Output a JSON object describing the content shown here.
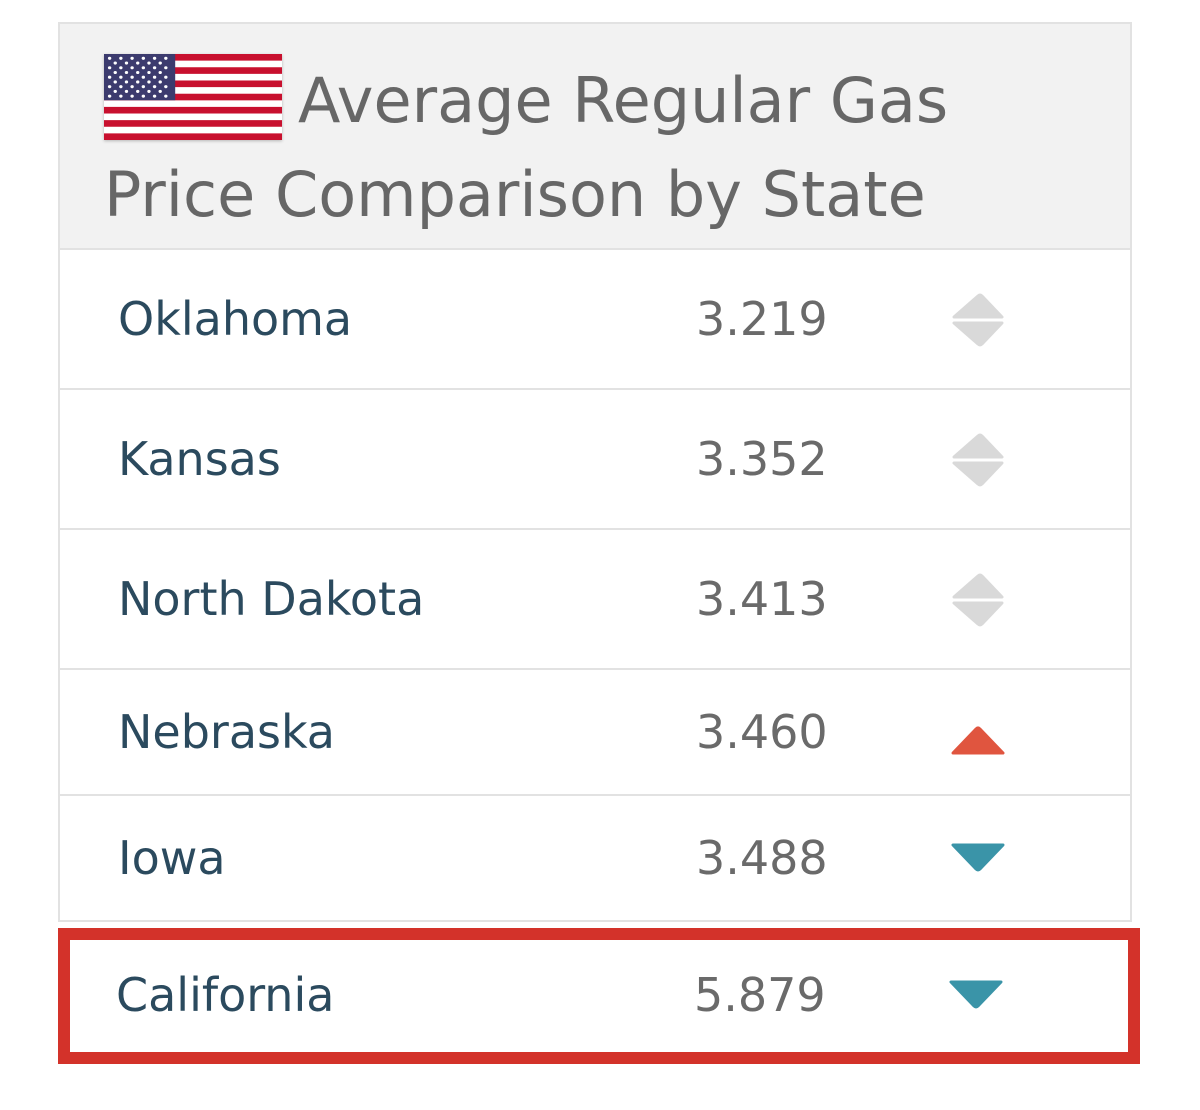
{
  "widget": {
    "title": "Average Regular Gas Price Comparison by State",
    "flag_icon": "us-flag-icon"
  },
  "rows": [
    {
      "state": "Oklahoma",
      "price": "3.219",
      "trend": "neutral"
    },
    {
      "state": "Kansas",
      "price": "3.352",
      "trend": "neutral"
    },
    {
      "state": "North Dakota",
      "price": "3.413",
      "trend": "neutral"
    },
    {
      "state": "Nebraska",
      "price": "3.460",
      "trend": "up"
    },
    {
      "state": "Iowa",
      "price": "3.488",
      "trend": "down"
    }
  ],
  "highlighted_row": {
    "state": "California",
    "price": "5.879",
    "trend": "down"
  },
  "colors": {
    "up": "#e0553f",
    "down": "#3a94a8",
    "neutral": "#d9d9d9",
    "highlight_border": "#d3322a",
    "state_text": "#2b4a5e",
    "price_text": "#6a6a6a",
    "header_bg": "#f2f2f2"
  }
}
